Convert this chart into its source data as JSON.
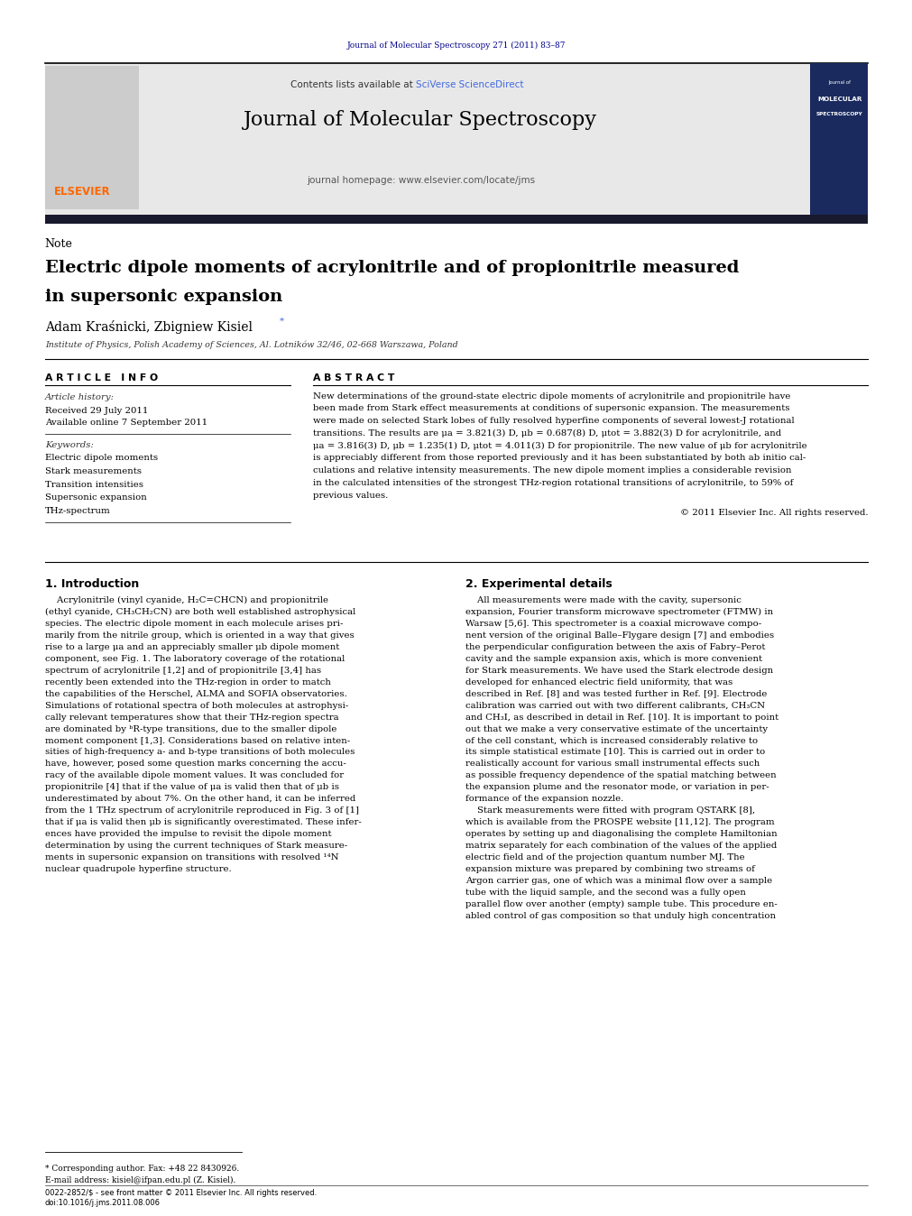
{
  "page_width": 9.92,
  "page_height": 13.23,
  "background_color": "#ffffff",
  "top_journal_ref": "Journal of Molecular Spectroscopy 271 (2011) 83–87",
  "top_journal_ref_color": "#00008B",
  "contents_line": "Contents lists available at",
  "sciverse_text": "SciVerse ScienceDirect",
  "sciverse_color": "#4169E1",
  "journal_name": "Journal of Molecular Spectroscopy",
  "journal_homepage": "journal homepage: www.elsevier.com/locate/jms",
  "section_label": "Note",
  "article_title_line1": "Electric dipole moments of acrylonitrile and of propionitrile measured",
  "article_title_line2": "in supersonic expansion",
  "authors": "Adam Kraśnicki, Zbigniew Kisiel",
  "author_star": "*",
  "affiliation": "Institute of Physics, Polish Academy of Sciences, Al. Lotników 32/46, 02-668 Warszawa, Poland",
  "article_info_title": "A R T I C L E   I N F O",
  "abstract_title": "A B S T R A C T",
  "article_history_label": "Article history:",
  "received_line": "Received 29 July 2011",
  "available_line": "Available online 7 September 2011",
  "keywords_label": "Keywords:",
  "keywords": [
    "Electric dipole moments",
    "Stark measurements",
    "Transition intensities",
    "Supersonic expansion",
    "THz-spectrum"
  ],
  "abstract_text_lines": [
    "New determinations of the ground-state electric dipole moments of acrylonitrile and propionitrile have",
    "been made from Stark effect measurements at conditions of supersonic expansion. The measurements",
    "were made on selected Stark lobes of fully resolved hyperfine components of several lowest-J rotational",
    "transitions. The results are μa = 3.821(3) D, μb = 0.687(8) D, μtot = 3.882(3) D for acrylonitrile, and",
    "μa = 3.816(3) D, μb = 1.235(1) D, μtot = 4.011(3) D for propionitrile. The new value of μb for acrylonitrile",
    "is appreciably different from those reported previously and it has been substantiated by both ab initio cal-",
    "culations and relative intensity measurements. The new dipole moment implies a considerable revision",
    "in the calculated intensities of the strongest THz-region rotational transitions of acrylonitrile, to 59% of",
    "previous values."
  ],
  "copyright_line": "© 2011 Elsevier Inc. All rights reserved.",
  "intro_heading": "1. Introduction",
  "exp_heading": "2. Experimental details",
  "intro_text_lines": [
    "    Acrylonitrile (vinyl cyanide, H₂C=CHCN) and propionitrile",
    "(ethyl cyanide, CH₃CH₂CN) are both well established astrophysical",
    "species. The electric dipole moment in each molecule arises pri-",
    "marily from the nitrile group, which is oriented in a way that gives",
    "rise to a large μa and an appreciably smaller μb dipole moment",
    "component, see Fig. 1. The laboratory coverage of the rotational",
    "spectrum of acrylonitrile [1,2] and of propionitrile [3,4] has",
    "recently been extended into the THz-region in order to match",
    "the capabilities of the Herschel, ALMA and SOFIA observatories.",
    "Simulations of rotational spectra of both molecules at astrophysi-",
    "cally relevant temperatures show that their THz-region spectra",
    "are dominated by ᵇR-type transitions, due to the smaller dipole",
    "moment component [1,3]. Considerations based on relative inten-",
    "sities of high-frequency a- and b-type transitions of both molecules",
    "have, however, posed some question marks concerning the accu-",
    "racy of the available dipole moment values. It was concluded for",
    "propionitrile [4] that if the value of μa is valid then that of μb is",
    "underestimated by about 7%. On the other hand, it can be inferred",
    "from the 1 THz spectrum of acrylonitrile reproduced in Fig. 3 of [1]",
    "that if μa is valid then μb is significantly overestimated. These infer-",
    "ences have provided the impulse to revisit the dipole moment",
    "determination by using the current techniques of Stark measure-",
    "ments in supersonic expansion on transitions with resolved ¹⁴N",
    "nuclear quadrupole hyperfine structure."
  ],
  "exp_text_lines": [
    "    All measurements were made with the cavity, supersonic",
    "expansion, Fourier transform microwave spectrometer (FTMW) in",
    "Warsaw [5,6]. This spectrometer is a coaxial microwave compo-",
    "nent version of the original Balle–Flygare design [7] and embodies",
    "the perpendicular configuration between the axis of Fabry–Perot",
    "cavity and the sample expansion axis, which is more convenient",
    "for Stark measurements. We have used the Stark electrode design",
    "developed for enhanced electric field uniformity, that was",
    "described in Ref. [8] and was tested further in Ref. [9]. Electrode",
    "calibration was carried out with two different calibrants, CH₃CN",
    "and CH₃I, as described in detail in Ref. [10]. It is important to point",
    "out that we make a very conservative estimate of the uncertainty",
    "of the cell constant, which is increased considerably relative to",
    "its simple statistical estimate [10]. This is carried out in order to",
    "realistically account for various small instrumental effects such",
    "as possible frequency dependence of the spatial matching between",
    "the expansion plume and the resonator mode, or variation in per-",
    "formance of the expansion nozzle.",
    "    Stark measurements were fitted with program QSTARK [8],",
    "which is available from the PROSPE website [11,12]. The program",
    "operates by setting up and diagonalising the complete Hamiltonian",
    "matrix separately for each combination of the values of the applied",
    "electric field and of the projection quantum number MJ. The",
    "expansion mixture was prepared by combining two streams of",
    "Argon carrier gas, one of which was a minimal flow over a sample",
    "tube with the liquid sample, and the second was a fully open",
    "parallel flow over another (empty) sample tube. This procedure en-",
    "abled control of gas composition so that unduly high concentration"
  ],
  "footnote_star": "* Corresponding author. Fax: +48 22 8430926.",
  "footnote_email": "E-mail address: kisiel@ifpan.edu.pl (Z. Kisiel).",
  "footer_line1": "0022-2852/$ - see front matter © 2011 Elsevier Inc. All rights reserved.",
  "footer_line2": "doi:10.1016/j.jms.2011.08.006",
  "elsevier_color": "#FF6600",
  "gray_banner_color": "#e8e8e8",
  "link_color": "#4169E1",
  "dark_bar_color": "#1a1a2e"
}
